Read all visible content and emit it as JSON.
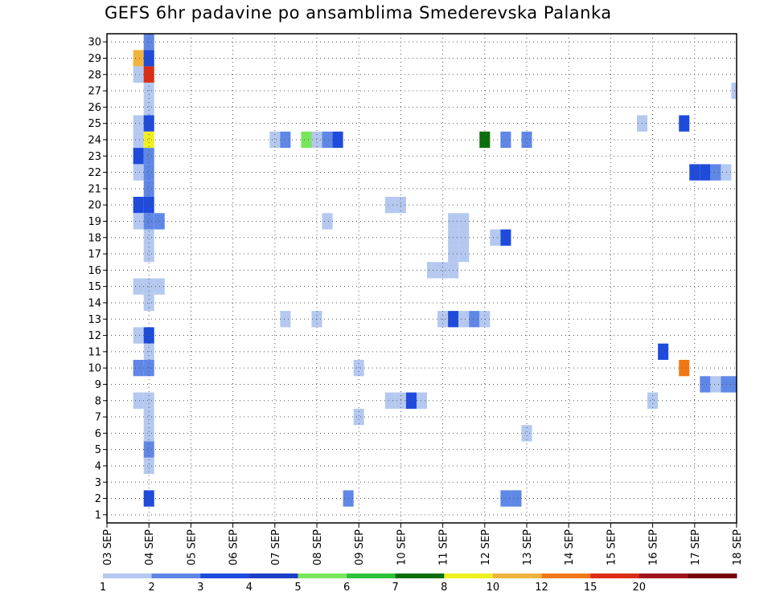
{
  "chart_data": {
    "type": "heatmap",
    "title": "GEFS 6hr padavine po ansamblima Smederevska Palanka",
    "x_labels": [
      "03 SEP",
      "04 SEP",
      "05 SEP",
      "06 SEP",
      "07 SEP",
      "08 SEP",
      "09 SEP",
      "10 SEP",
      "11 SEP",
      "12 SEP",
      "13 SEP",
      "14 SEP",
      "15 SEP",
      "16 SEP",
      "17 SEP",
      "18 SEP"
    ],
    "y_labels": [
      "1",
      "2",
      "3",
      "4",
      "5",
      "6",
      "7",
      "8",
      "9",
      "10",
      "11",
      "12",
      "13",
      "14",
      "15",
      "16",
      "17",
      "18",
      "19",
      "20",
      "21",
      "22",
      "23",
      "24",
      "25",
      "26",
      "27",
      "28",
      "29",
      "30"
    ],
    "xlim": [
      0,
      60
    ],
    "ylim": [
      0.5,
      30.5
    ],
    "grid": true,
    "color_levels": {
      "labels": [
        "1",
        "2",
        "3",
        "4",
        "5",
        "6",
        "7",
        "8",
        "10",
        "12",
        "15",
        "20"
      ],
      "colors": [
        "#b4c8f0",
        "#5f87e6",
        "#1e4bdc",
        "#1f3fc8",
        "#78e65a",
        "#2cc23a",
        "#0a6e0a",
        "#f0f01e",
        "#f0b43c",
        "#f07814",
        "#dc2d14",
        "#a0141e",
        "#78000a"
      ]
    },
    "cells": [
      {
        "member": 30,
        "step": 4,
        "band": 1
      },
      {
        "member": 29,
        "step": 3,
        "band": 8
      },
      {
        "member": 29,
        "step": 4,
        "band": 2
      },
      {
        "member": 28,
        "step": 3,
        "band": 0
      },
      {
        "member": 28,
        "step": 4,
        "band": 10
      },
      {
        "member": 27,
        "step": 4,
        "band": 0
      },
      {
        "member": 27,
        "step": 60,
        "band": 0
      },
      {
        "member": 26,
        "step": 4,
        "band": 0
      },
      {
        "member": 25,
        "step": 3,
        "band": 0
      },
      {
        "member": 25,
        "step": 4,
        "band": 2
      },
      {
        "member": 25,
        "step": 51,
        "band": 0
      },
      {
        "member": 25,
        "step": 55,
        "band": 2
      },
      {
        "member": 24,
        "step": 3,
        "band": 0
      },
      {
        "member": 24,
        "step": 4,
        "band": 7
      },
      {
        "member": 24,
        "step": 16,
        "band": 0
      },
      {
        "member": 24,
        "step": 17,
        "band": 1
      },
      {
        "member": 24,
        "step": 19,
        "band": 4
      },
      {
        "member": 24,
        "step": 20,
        "band": 0
      },
      {
        "member": 24,
        "step": 21,
        "band": 1
      },
      {
        "member": 24,
        "step": 22,
        "band": 2
      },
      {
        "member": 24,
        "step": 36,
        "band": 6
      },
      {
        "member": 24,
        "step": 38,
        "band": 1
      },
      {
        "member": 24,
        "step": 40,
        "band": 1
      },
      {
        "member": 23,
        "step": 3,
        "band": 2
      },
      {
        "member": 23,
        "step": 4,
        "band": 1
      },
      {
        "member": 22,
        "step": 3,
        "band": 0
      },
      {
        "member": 22,
        "step": 4,
        "band": 1
      },
      {
        "member": 22,
        "step": 56,
        "band": 2
      },
      {
        "member": 22,
        "step": 57,
        "band": 2
      },
      {
        "member": 22,
        "step": 58,
        "band": 1
      },
      {
        "member": 22,
        "step": 59,
        "band": 0
      },
      {
        "member": 21,
        "step": 4,
        "band": 1
      },
      {
        "member": 20,
        "step": 3,
        "band": 2
      },
      {
        "member": 20,
        "step": 4,
        "band": 2
      },
      {
        "member": 20,
        "step": 27,
        "band": 0
      },
      {
        "member": 20,
        "step": 28,
        "band": 0
      },
      {
        "member": 19,
        "step": 3,
        "band": 0
      },
      {
        "member": 19,
        "step": 4,
        "band": 1
      },
      {
        "member": 19,
        "step": 5,
        "band": 1
      },
      {
        "member": 19,
        "step": 21,
        "band": 0
      },
      {
        "member": 19,
        "step": 33,
        "band": 0
      },
      {
        "member": 19,
        "step": 34,
        "band": 0
      },
      {
        "member": 18,
        "step": 4,
        "band": 0
      },
      {
        "member": 18,
        "step": 33,
        "band": 0
      },
      {
        "member": 18,
        "step": 34,
        "band": 0
      },
      {
        "member": 18,
        "step": 37,
        "band": 0
      },
      {
        "member": 18,
        "step": 38,
        "band": 2
      },
      {
        "member": 17,
        "step": 4,
        "band": 0
      },
      {
        "member": 17,
        "step": 33,
        "band": 0
      },
      {
        "member": 17,
        "step": 34,
        "band": 0
      },
      {
        "member": 16,
        "step": 31,
        "band": 0
      },
      {
        "member": 16,
        "step": 32,
        "band": 0
      },
      {
        "member": 16,
        "step": 33,
        "band": 0
      },
      {
        "member": 15,
        "step": 3,
        "band": 0
      },
      {
        "member": 15,
        "step": 4,
        "band": 0
      },
      {
        "member": 15,
        "step": 5,
        "band": 0
      },
      {
        "member": 14,
        "step": 4,
        "band": 0
      },
      {
        "member": 13,
        "step": 17,
        "band": 0
      },
      {
        "member": 13,
        "step": 20,
        "band": 0
      },
      {
        "member": 13,
        "step": 32,
        "band": 0
      },
      {
        "member": 13,
        "step": 33,
        "band": 2
      },
      {
        "member": 13,
        "step": 34,
        "band": 0
      },
      {
        "member": 13,
        "step": 35,
        "band": 1
      },
      {
        "member": 13,
        "step": 36,
        "band": 0
      },
      {
        "member": 12,
        "step": 3,
        "band": 0
      },
      {
        "member": 12,
        "step": 4,
        "band": 2
      },
      {
        "member": 11,
        "step": 4,
        "band": 0
      },
      {
        "member": 11,
        "step": 53,
        "band": 2
      },
      {
        "member": 10,
        "step": 3,
        "band": 1
      },
      {
        "member": 10,
        "step": 4,
        "band": 1
      },
      {
        "member": 10,
        "step": 24,
        "band": 0
      },
      {
        "member": 10,
        "step": 55,
        "band": 9
      },
      {
        "member": 9,
        "step": 57,
        "band": 1
      },
      {
        "member": 9,
        "step": 58,
        "band": 0
      },
      {
        "member": 9,
        "step": 59,
        "band": 1
      },
      {
        "member": 9,
        "step": 60,
        "band": 1
      },
      {
        "member": 8,
        "step": 3,
        "band": 0
      },
      {
        "member": 8,
        "step": 4,
        "band": 0
      },
      {
        "member": 8,
        "step": 27,
        "band": 0
      },
      {
        "member": 8,
        "step": 28,
        "band": 0
      },
      {
        "member": 8,
        "step": 29,
        "band": 2
      },
      {
        "member": 8,
        "step": 30,
        "band": 0
      },
      {
        "member": 8,
        "step": 52,
        "band": 0
      },
      {
        "member": 7,
        "step": 4,
        "band": 0
      },
      {
        "member": 7,
        "step": 24,
        "band": 0
      },
      {
        "member": 6,
        "step": 4,
        "band": 0
      },
      {
        "member": 6,
        "step": 40,
        "band": 0
      },
      {
        "member": 5,
        "step": 4,
        "band": 1
      },
      {
        "member": 4,
        "step": 4,
        "band": 0
      },
      {
        "member": 2,
        "step": 4,
        "band": 2
      },
      {
        "member": 2,
        "step": 23,
        "band": 1
      },
      {
        "member": 2,
        "step": 38,
        "band": 1
      },
      {
        "member": 2,
        "step": 39,
        "band": 1
      }
    ]
  }
}
